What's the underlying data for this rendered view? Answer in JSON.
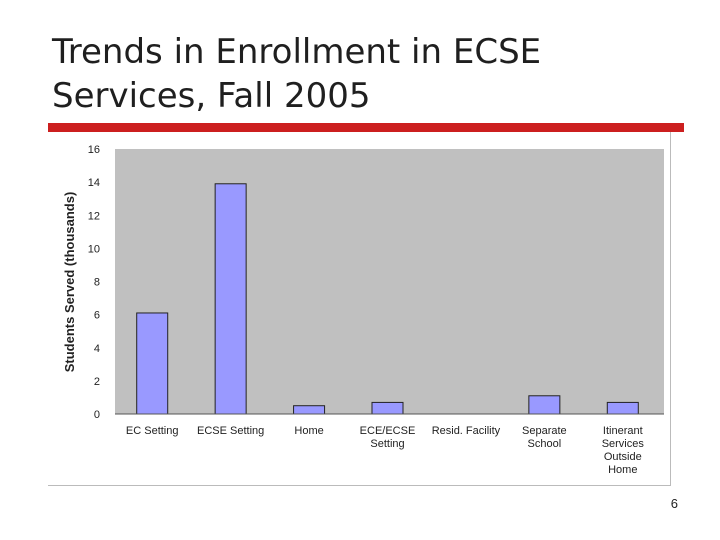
{
  "slide": {
    "title": "Trends in Enrollment in ECSE Services, Fall 2005",
    "page_number": "6"
  },
  "colors": {
    "accent": "#cc1f1f",
    "plot_background": "#c0c0c0",
    "bar_fill": "#9999ff",
    "bar_stroke": "#222222"
  },
  "chart_data": {
    "type": "bar",
    "title": "",
    "xlabel": "",
    "ylabel": "Students Served (thousands)",
    "ylim": [
      0,
      16
    ],
    "yticks": [
      0,
      2,
      4,
      6,
      8,
      10,
      12,
      14,
      16
    ],
    "grid": false,
    "legend": "none",
    "categories": [
      [
        "EC Setting"
      ],
      [
        "ECSE Setting"
      ],
      [
        "Home"
      ],
      [
        "ECE/ECSE",
        "Setting"
      ],
      [
        "Resid. Facility"
      ],
      [
        "Separate",
        "School"
      ],
      [
        "Itinerant",
        "Services",
        "Outside",
        "Home"
      ]
    ],
    "values": [
      6.1,
      13.9,
      0.5,
      0.7,
      0.0,
      1.1,
      0.7
    ]
  }
}
